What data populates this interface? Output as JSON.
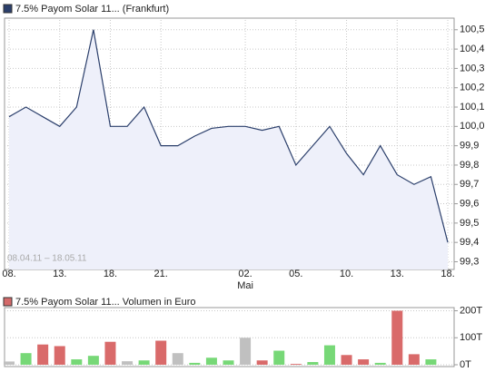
{
  "chart_data": [
    {
      "type": "line",
      "legend": "7.5% Payom Solar 11... (Frankfurt)",
      "legend_color": "#2b3f6b",
      "annotation": "08.04.11 – 18.05.11",
      "categories": [
        "08.",
        null,
        null,
        "13.",
        null,
        null,
        "18.",
        null,
        null,
        "21.",
        null,
        null,
        null,
        null,
        "02.",
        null,
        null,
        "05.",
        null,
        null,
        "10.",
        null,
        null,
        "13.",
        null,
        null,
        "18."
      ],
      "x_sublabels": [
        null,
        null,
        null,
        null,
        null,
        null,
        null,
        null,
        null,
        null,
        null,
        null,
        null,
        null,
        "Mai",
        null,
        null,
        null,
        null,
        null,
        null,
        null,
        null,
        null,
        null,
        null,
        null
      ],
      "series": [
        {
          "name": "7.5% Payom Solar 11... (Frankfurt)",
          "color": "#2b3f6b",
          "fill": "#eef0fa",
          "values": [
            100.05,
            100.1,
            100.05,
            100.0,
            100.1,
            100.5,
            100.0,
            100.0,
            100.1,
            99.9,
            99.9,
            99.95,
            99.99,
            100.0,
            100.0,
            99.98,
            100.0,
            99.8,
            99.9,
            100.0,
            99.86,
            99.75,
            99.9,
            99.75,
            99.7,
            99.74,
            99.4
          ]
        }
      ],
      "ylim": [
        99.26,
        100.56
      ],
      "yticks": [
        {
          "value": 99.3,
          "label": "99,3"
        },
        {
          "value": 99.4,
          "label": "99,4"
        },
        {
          "value": 99.5,
          "label": "99,5"
        },
        {
          "value": 99.6,
          "label": "99,6"
        },
        {
          "value": 99.7,
          "label": "99,7"
        },
        {
          "value": 99.8,
          "label": "99,8"
        },
        {
          "value": 99.9,
          "label": "99,9"
        },
        {
          "value": 100.0,
          "label": "100,0"
        },
        {
          "value": 100.1,
          "label": "100,1"
        },
        {
          "value": 100.2,
          "label": "100,2"
        },
        {
          "value": 100.3,
          "label": "100,3"
        },
        {
          "value": 100.4,
          "label": "100,4"
        },
        {
          "value": 100.5,
          "label": "100,5"
        }
      ],
      "grid": true
    },
    {
      "type": "bar",
      "legend": "7.5% Payom Solar 11... Volumen in Euro",
      "legend_color": "#d46a6a",
      "values": [
        12000,
        43000,
        75000,
        69000,
        20000,
        33000,
        85000,
        13000,
        16000,
        89000,
        43000,
        7000,
        26000,
        16000,
        100000,
        16000,
        52000,
        3000,
        10000,
        72000,
        36000,
        20000,
        7000,
        200000,
        39000,
        20000,
        0
      ],
      "colors": [
        "#c0c0c0",
        "#77d877",
        "#d96a6a",
        "#d96a6a",
        "#77d877",
        "#77d877",
        "#d96a6a",
        "#c0c0c0",
        "#77d877",
        "#d96a6a",
        "#c0c0c0",
        "#77d877",
        "#77d877",
        "#77d877",
        "#c0c0c0",
        "#d96a6a",
        "#77d877",
        "#d96a6a",
        "#77d877",
        "#77d877",
        "#d96a6a",
        "#d96a6a",
        "#77d877",
        "#d96a6a",
        "#d96a6a",
        "#77d877",
        "#d96a6a"
      ],
      "ylim": [
        0,
        205000
      ],
      "yticks": [
        {
          "value": 0,
          "label": "0T"
        },
        {
          "value": 100000,
          "label": "100T"
        },
        {
          "value": 200000,
          "label": "200T"
        }
      ],
      "grid": true
    }
  ]
}
